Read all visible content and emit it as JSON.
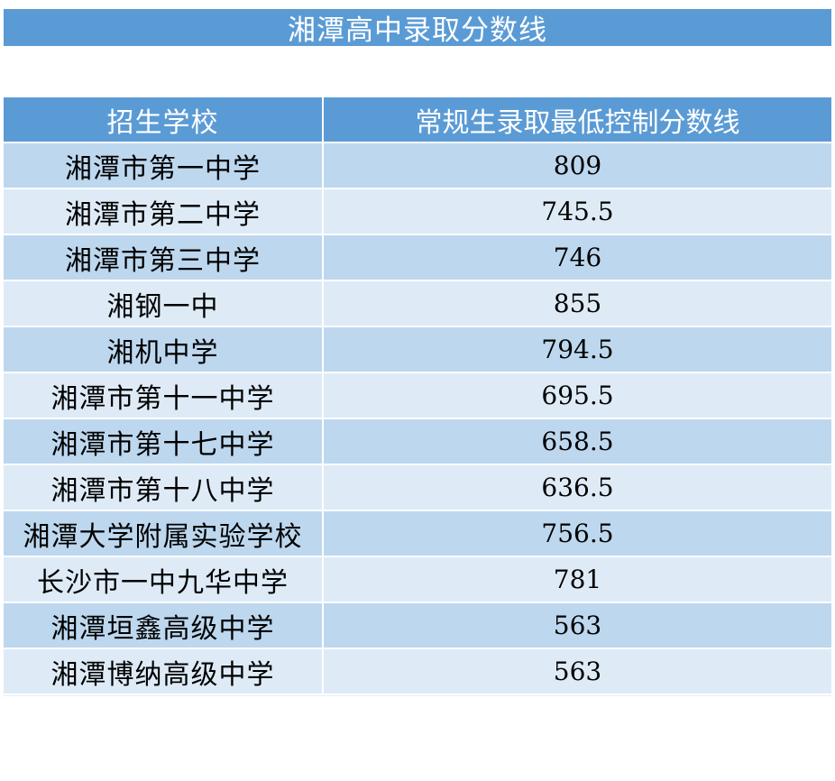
{
  "title": "湘潭高中录取分数线",
  "table": {
    "headers": {
      "school": "招生学校",
      "score": "常规生录取最低控制分数线"
    },
    "rows": [
      {
        "school": "湘潭市第一中学",
        "score": "809"
      },
      {
        "school": "湘潭市第二中学",
        "score": "745.5"
      },
      {
        "school": "湘潭市第三中学",
        "score": "746"
      },
      {
        "school": "湘钢一中",
        "score": "855"
      },
      {
        "school": "湘机中学",
        "score": "794.5"
      },
      {
        "school": "湘潭市第十一中学",
        "score": "695.5"
      },
      {
        "school": "湘潭市第十七中学",
        "score": "658.5"
      },
      {
        "school": "湘潭市第十八中学",
        "score": "636.5"
      },
      {
        "school": "湘潭大学附属实验学校",
        "score": "756.5"
      },
      {
        "school": "长沙市一中九华中学",
        "score": "781"
      },
      {
        "school": "湘潭垣鑫高级中学",
        "score": "563"
      },
      {
        "school": "湘潭博纳高级中学",
        "score": "563"
      }
    ]
  },
  "colors": {
    "header_bg": "#5b9bd5",
    "row_dark": "#bdd7ee",
    "row_light": "#deebf7"
  }
}
